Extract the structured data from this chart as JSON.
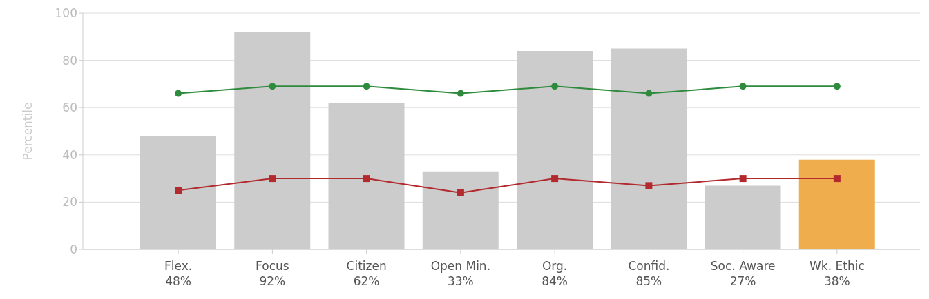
{
  "chart_data": {
    "type": "bar",
    "ylabel": "Percentile",
    "categories": [
      "Flex.",
      "Focus",
      "Citizen",
      "Open Min.",
      "Org.",
      "Confid.",
      "Soc. Aware",
      "Wk. Ethic"
    ],
    "ylim": [
      0,
      100
    ],
    "yticks": [
      0,
      20,
      40,
      60,
      80,
      100
    ],
    "grid": "y",
    "legend": false,
    "series": [
      {
        "values": [
          48,
          92,
          62,
          33,
          84,
          85,
          27,
          38
        ],
        "colors": [
          "#cccccc",
          "#cccccc",
          "#cccccc",
          "#cccccc",
          "#cccccc",
          "#cccccc",
          "#cccccc",
          "#f0ad4e"
        ],
        "value_labels": [
          "48%",
          "92%",
          "62%",
          "33%",
          "84%",
          "85%",
          "27%",
          "38%"
        ]
      },
      {
        "type": "line",
        "color": "#2e8b3e",
        "marker": "circle",
        "values": [
          66,
          69,
          69,
          66,
          69,
          66,
          69,
          69
        ]
      },
      {
        "type": "line",
        "color": "#b22a2e",
        "marker": "square",
        "values": [
          25,
          30,
          30,
          24,
          30,
          27,
          30,
          30
        ]
      }
    ]
  }
}
